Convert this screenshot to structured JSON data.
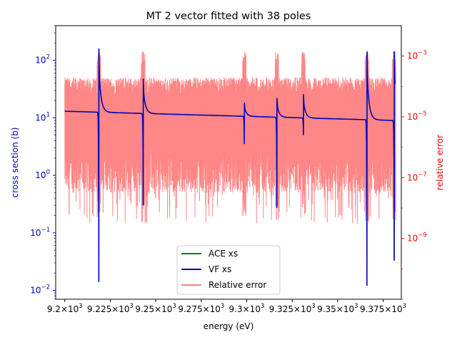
{
  "chart_data": {
    "type": "line",
    "title": "MT 2 vector fitted with 38 poles",
    "xlabel": "energy (eV)",
    "ylabel_left": "cross section (b)",
    "ylabel_right": "relative error",
    "xlim": [
      9195,
      9385
    ],
    "ylim_left": [
      0.007,
      400
    ],
    "ylim_right": [
      1e-11,
      0.01
    ],
    "yscale_left": "log",
    "yscale_right": "log",
    "grid": false,
    "legend_position": "lower-center",
    "xticks": [
      {
        "value": 9200,
        "label": "9.2×10³"
      },
      {
        "value": 9225,
        "label": "9.225×10³"
      },
      {
        "value": 9250,
        "label": "9.25×10³"
      },
      {
        "value": 9275,
        "label": "9.275×10³"
      },
      {
        "value": 9300,
        "label": "9.3×10³"
      },
      {
        "value": 9325,
        "label": "9.325×10³"
      },
      {
        "value": 9350,
        "label": "9.35×10³"
      },
      {
        "value": 9375,
        "label": "9.375×10³"
      }
    ],
    "yticks_left": [
      {
        "value": 0.01,
        "base": "10",
        "exp": "−2"
      },
      {
        "value": 0.1,
        "base": "10",
        "exp": "−1"
      },
      {
        "value": 1,
        "base": "10",
        "exp": "0"
      },
      {
        "value": 10,
        "base": "10",
        "exp": "1"
      },
      {
        "value": 100,
        "base": "10",
        "exp": "2"
      }
    ],
    "yticks_right": [
      {
        "value": 1e-09,
        "base": "10",
        "exp": "−9"
      },
      {
        "value": 1e-07,
        "base": "10",
        "exp": "−7"
      },
      {
        "value": 1e-05,
        "base": "10",
        "exp": "−5"
      },
      {
        "value": 0.001,
        "base": "10",
        "exp": "−3"
      }
    ],
    "base_xs": {
      "x_start": 9200,
      "y_start": 13.0,
      "x_end": 9380,
      "y_end": 9.0
    },
    "resonances": [
      {
        "energy": 9218.7,
        "peak": 240,
        "dip": 0.014
      },
      {
        "energy": 9243.1,
        "peak": 60,
        "dip": 0.3
      },
      {
        "energy": 9298.7,
        "peak": 20,
        "dip": 3.5
      },
      {
        "energy": 9316.6,
        "peak": 25,
        "dip": 0.27
      },
      {
        "energy": 9331.2,
        "peak": 30,
        "dip": 5.0
      },
      {
        "energy": 9366.1,
        "peak": 220,
        "dip": 0.012
      },
      {
        "energy": 9381.1,
        "peak": 220,
        "dip": 0.033
      }
    ],
    "series": [
      {
        "name": "ACE xs",
        "color": "#008000"
      },
      {
        "name": "VF xs",
        "color": "#0000cc"
      },
      {
        "name": "Relative error",
        "color": "#ff7f7f"
      }
    ],
    "relative_error_band": {
      "x_start": 9200,
      "x_end": 9382,
      "typical_min": 1e-07,
      "typical_max": 0.0001,
      "spike_max": 0.0015,
      "spike_min": 3e-09
    }
  }
}
